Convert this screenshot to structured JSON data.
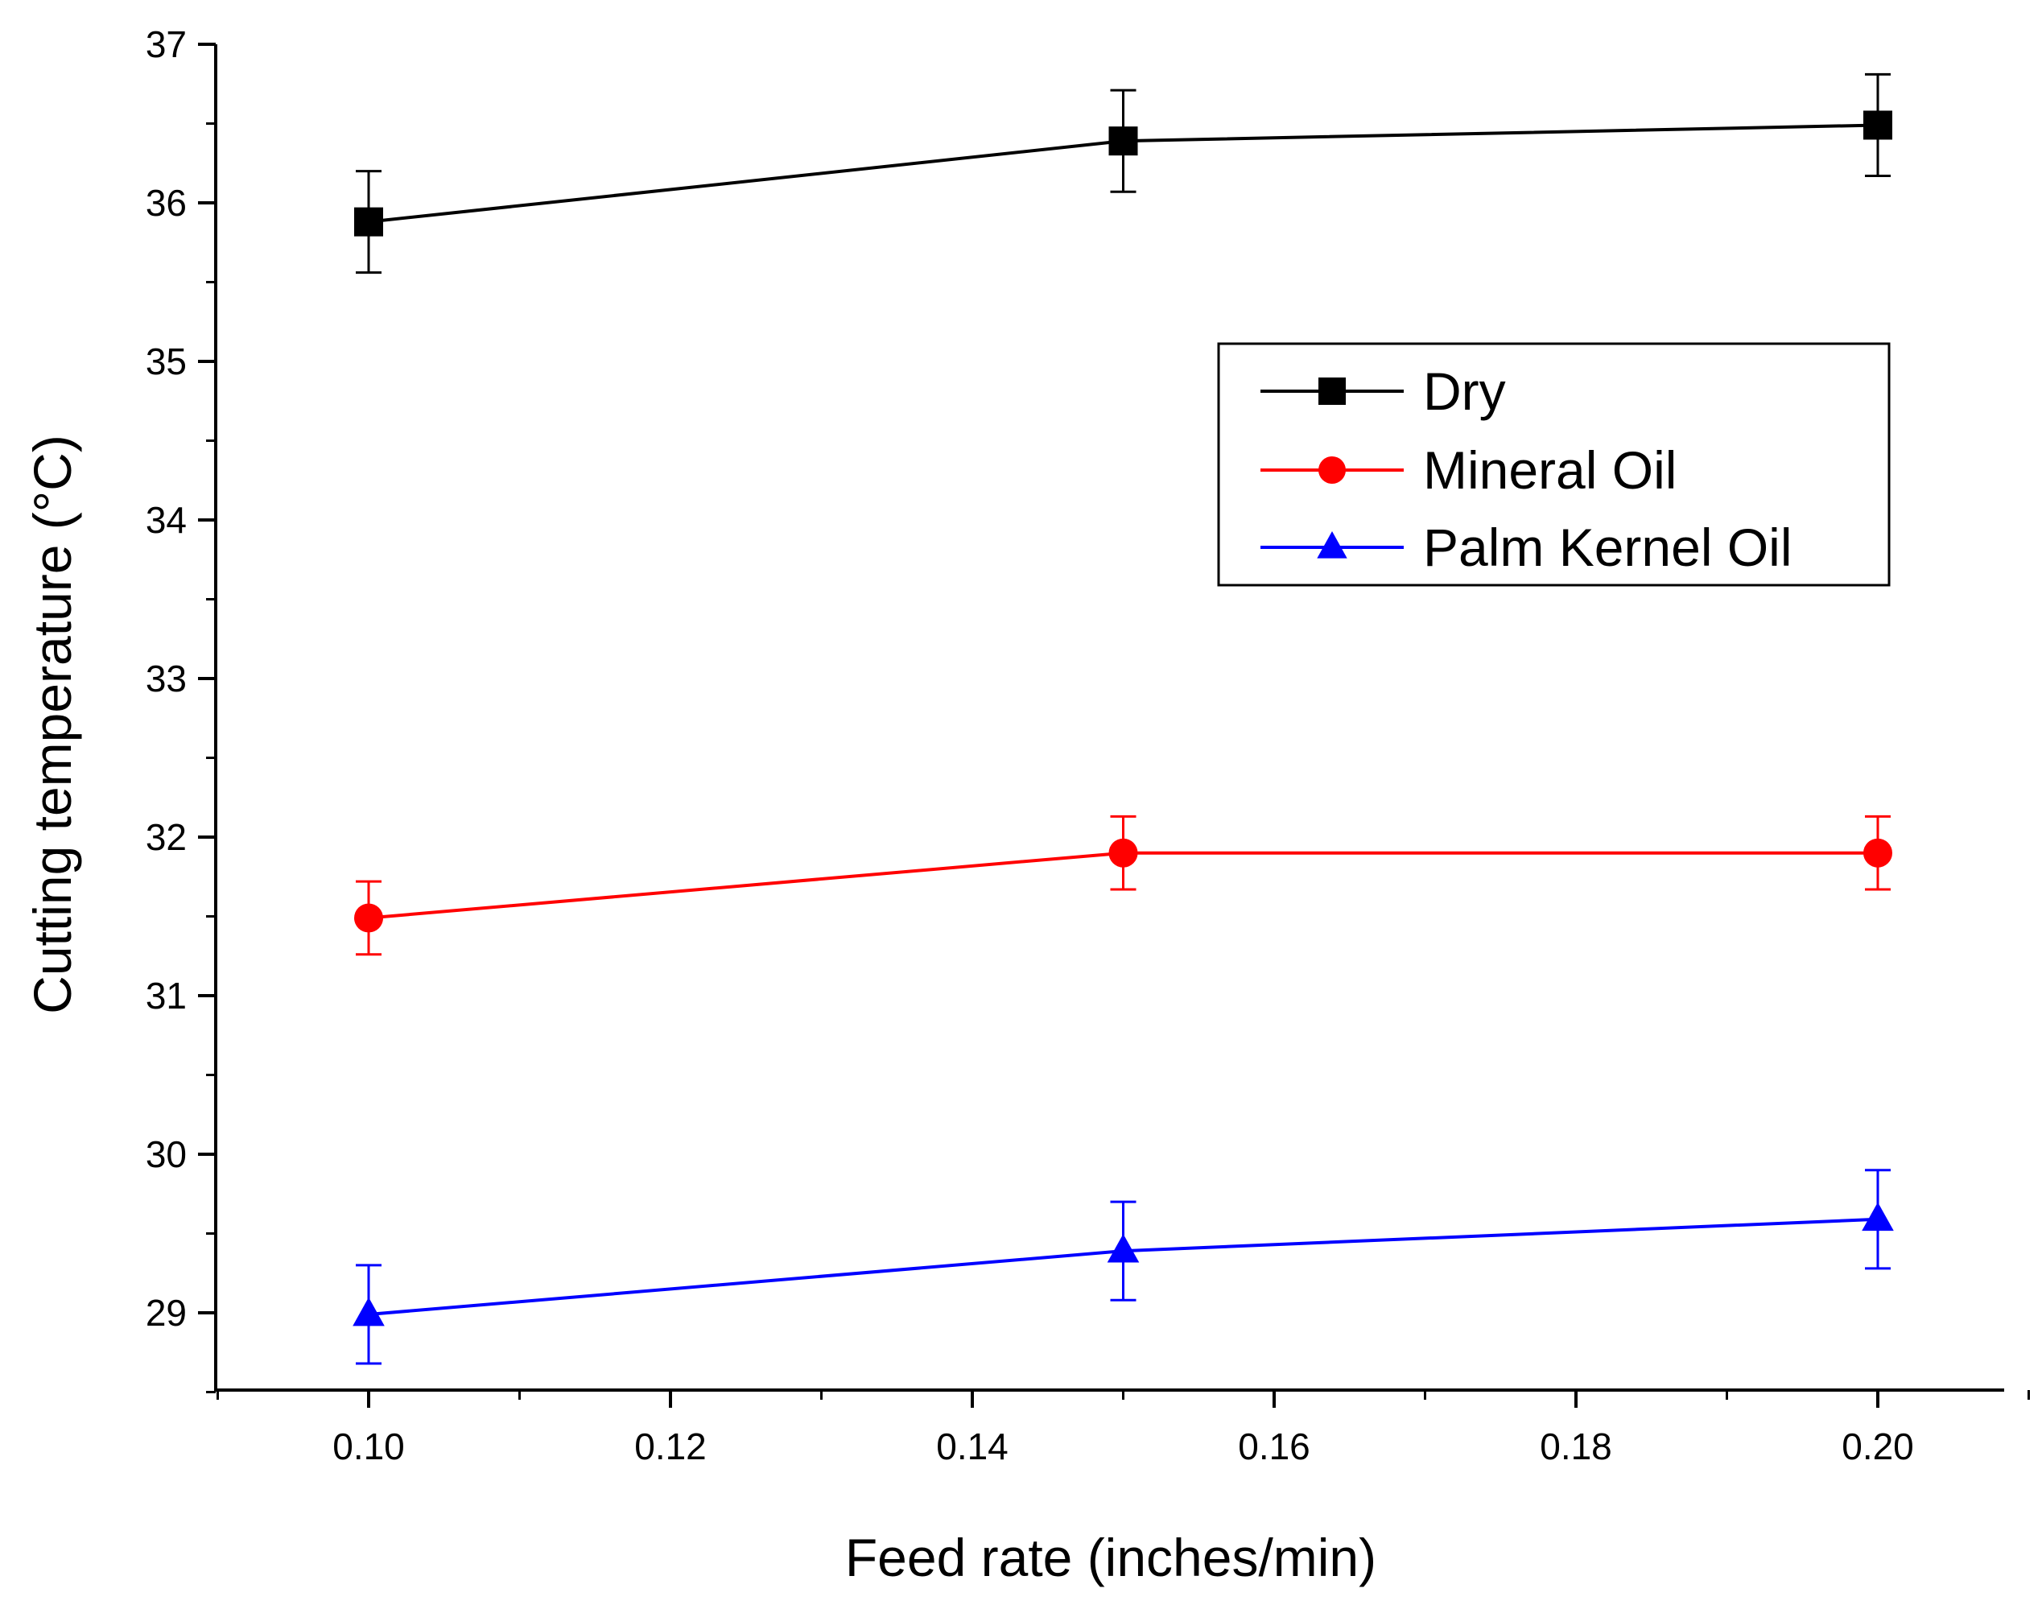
{
  "chart_data": {
    "type": "line",
    "title": "",
    "xlabel": "Feed rate (inches/min)",
    "ylabel": "Cutting temperature (°C)",
    "xlim": [
      0.09,
      0.21
    ],
    "ylim": [
      28.5,
      37
    ],
    "x_ticks": [
      0.1,
      0.12,
      0.14,
      0.16,
      0.18,
      0.2
    ],
    "x_tick_labels": [
      "0.10",
      "0.12",
      "0.14",
      "0.16",
      "0.18",
      "0.20"
    ],
    "y_ticks": [
      29,
      30,
      31,
      32,
      33,
      34,
      35,
      36,
      37
    ],
    "y_tick_labels": [
      "29",
      "30",
      "31",
      "32",
      "33",
      "34",
      "35",
      "36",
      "37"
    ],
    "grid": false,
    "legend_position": "right",
    "series": [
      {
        "name": "Dry",
        "color": "#000000",
        "marker": "square",
        "x": [
          0.1,
          0.15,
          0.2
        ],
        "values": [
          35.88,
          36.39,
          36.49
        ],
        "errors": [
          0.32,
          0.32,
          0.32
        ]
      },
      {
        "name": "Mineral Oil",
        "color": "#ff0000",
        "marker": "circle",
        "x": [
          0.1,
          0.15,
          0.2
        ],
        "values": [
          31.49,
          31.9,
          31.9
        ],
        "errors": [
          0.23,
          0.23,
          0.23
        ]
      },
      {
        "name": "Palm Kernel Oil",
        "color": "#0000ff",
        "marker": "triangle",
        "x": [
          0.1,
          0.15,
          0.2
        ],
        "values": [
          28.99,
          29.39,
          29.59
        ],
        "errors": [
          0.31,
          0.31,
          0.31
        ]
      }
    ]
  }
}
